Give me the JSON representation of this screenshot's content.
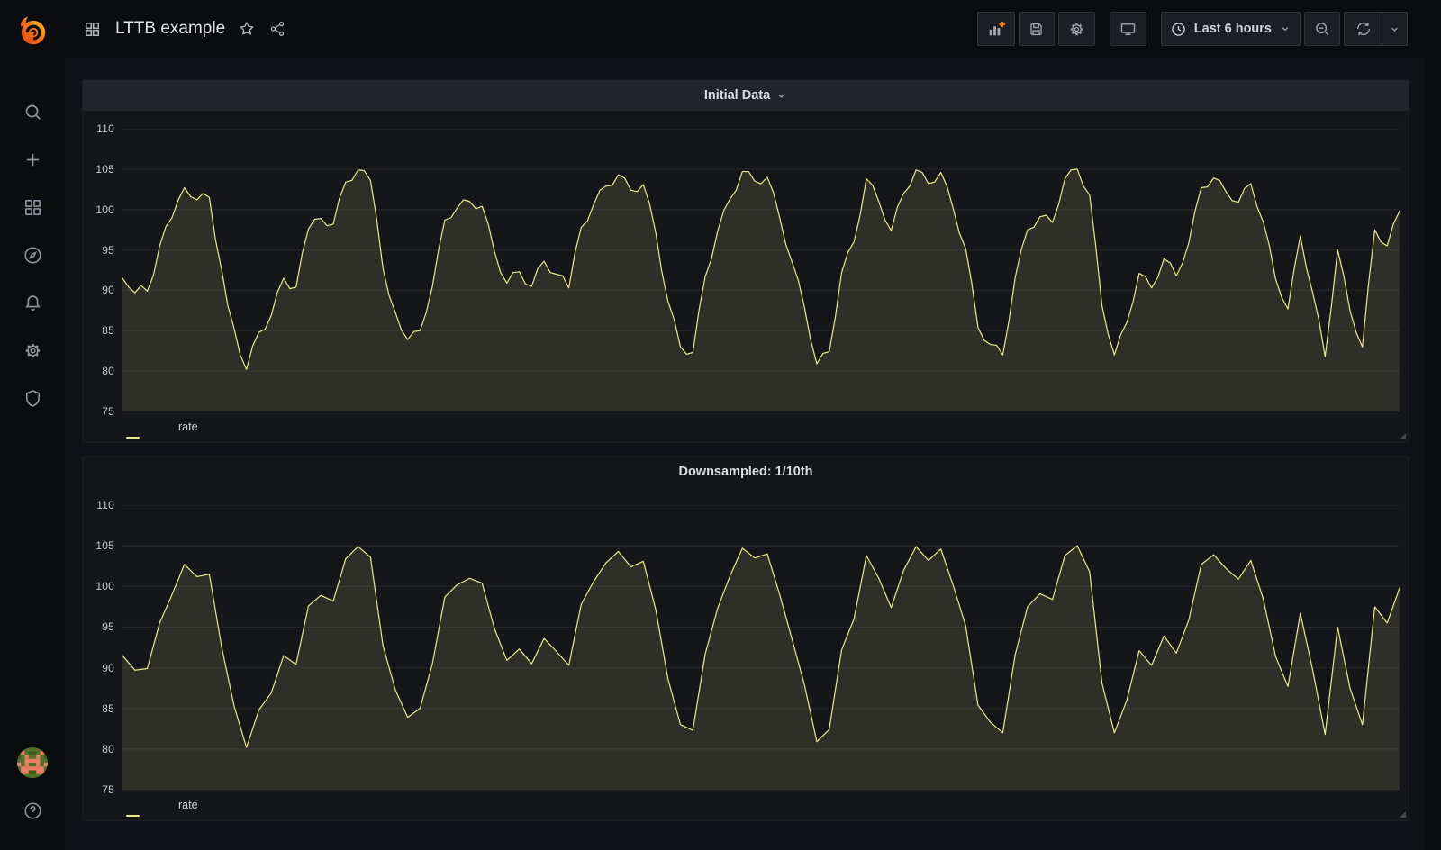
{
  "colors": {
    "accent_orange": "#FF780A",
    "series_yellow": "#EDE98C",
    "series_fill": "rgba(237,233,140,0.12)",
    "page_bg": "#111217",
    "chrome_bg": "#0b0c0e",
    "panel_bg": "#141619"
  },
  "sidebar": {
    "items": [
      {
        "icon": "grafana-logo"
      },
      {
        "icon": "search-icon"
      },
      {
        "icon": "plus-icon"
      },
      {
        "icon": "dashboards-grid-icon"
      },
      {
        "icon": "explore-compass-icon"
      },
      {
        "icon": "alerting-bell-icon"
      },
      {
        "icon": "configuration-gear-icon"
      },
      {
        "icon": "admin-shield-icon"
      },
      {
        "icon": "user-avatar"
      },
      {
        "icon": "help-question-icon"
      }
    ]
  },
  "topnav": {
    "title": "LTTB example",
    "left_icons": [
      "dashboard-grid-icon",
      "star-icon",
      "share-icon"
    ],
    "toolbar": {
      "buttons": [
        "add-panel",
        "save-dashboard",
        "dashboard-settings",
        "cycle-view-mode",
        "time-range-picker",
        "zoom-out",
        "refresh",
        "refresh-interval-dropdown"
      ],
      "time_range_label": "Last 6 hours"
    }
  },
  "chart_data": [
    {
      "type": "line",
      "title": "Initial Data",
      "has_menu_chevron": true,
      "ylim": [
        75,
        110
      ],
      "yticks": [
        75,
        80,
        85,
        90,
        95,
        100,
        105,
        110
      ],
      "x_axis": {
        "labels_visible": false,
        "range": "Last 6 hours"
      },
      "grid": true,
      "legend_position": "bottom-left",
      "line_color": "#EDE98C",
      "fill_color": "rgba(237,233,140,0.12)",
      "series": [
        {
          "name": "rate",
          "values": [
            91.5,
            90.4,
            89.7,
            90.6,
            89.9,
            91.9,
            95.5,
            97.9,
            99.0,
            101.2,
            102.7,
            101.6,
            101.2,
            102.0,
            101.5,
            96.3,
            92.5,
            88.1,
            85.3,
            82.0,
            80.2,
            83.1,
            84.8,
            85.2,
            86.9,
            89.8,
            91.5,
            90.2,
            90.4,
            94.6,
            97.6,
            98.8,
            98.9,
            98.0,
            98.2,
            101.4,
            103.4,
            103.6,
            104.9,
            104.8,
            103.6,
            98.9,
            92.8,
            89.4,
            87.3,
            85.1,
            83.9,
            84.9,
            85.0,
            87.3,
            90.5,
            95.1,
            98.7,
            99.0,
            100.2,
            101.2,
            101.0,
            100.1,
            100.4,
            98.2,
            94.8,
            92.2,
            90.9,
            92.2,
            92.3,
            90.8,
            90.5,
            92.7,
            93.6,
            92.2,
            92.0,
            91.8,
            90.3,
            94.7,
            97.8,
            98.6,
            100.6,
            102.4,
            102.9,
            103.0,
            104.3,
            103.9,
            102.4,
            102.2,
            103.1,
            100.8,
            97.2,
            92.3,
            88.6,
            86.4,
            83.0,
            82.1,
            82.3,
            87.6,
            91.7,
            93.9,
            97.3,
            99.9,
            101.3,
            102.4,
            104.7,
            104.7,
            103.5,
            103.2,
            104.0,
            102.1,
            99.0,
            95.7,
            93.5,
            91.3,
            87.9,
            83.9,
            80.9,
            82.2,
            82.4,
            86.8,
            92.2,
            94.7,
            96.0,
            99.4,
            103.8,
            103.0,
            101.0,
            98.7,
            97.4,
            100.3,
            102.0,
            102.9,
            104.9,
            104.6,
            103.2,
            103.4,
            104.6,
            102.9,
            100.1,
            97.1,
            95.2,
            90.9,
            85.4,
            83.8,
            83.3,
            83.2,
            82.0,
            86.3,
            91.6,
            95.1,
            97.5,
            97.8,
            99.1,
            99.3,
            98.4,
            100.6,
            103.8,
            104.9,
            105.0,
            102.9,
            101.8,
            95.5,
            88.1,
            84.6,
            82.0,
            84.5,
            86.0,
            88.6,
            92.1,
            91.7,
            90.3,
            91.6,
            93.9,
            93.4,
            91.8,
            93.4,
            95.9,
            99.8,
            102.7,
            102.8,
            103.9,
            103.6,
            102.2,
            101.1,
            100.9,
            102.6,
            103.2,
            100.4,
            98.5,
            95.5,
            91.4,
            89.1,
            87.7,
            92.7,
            96.7,
            92.7,
            89.7,
            86.3,
            81.8,
            88.0,
            95.0,
            91.8,
            87.5,
            84.8,
            83.0,
            90.8,
            97.5,
            96.0,
            95.5,
            98.2,
            99.8
          ]
        }
      ]
    },
    {
      "type": "line",
      "title": "Downsampled: 1/10th",
      "has_menu_chevron": false,
      "ylim": [
        75,
        110
      ],
      "yticks": [
        75,
        80,
        85,
        90,
        95,
        100,
        105,
        110
      ],
      "x_axis": {
        "labels_visible": false,
        "range": "Last 6 hours"
      },
      "grid": true,
      "legend_position": "bottom-left",
      "line_color": "#EDE98C",
      "fill_color": "rgba(237,233,140,0.12)",
      "series": [
        {
          "name": "rate",
          "values": [
            91.5,
            89.7,
            89.9,
            95.5,
            99.0,
            102.7,
            101.2,
            101.5,
            92.5,
            85.3,
            80.2,
            84.8,
            86.9,
            91.5,
            90.4,
            97.6,
            98.9,
            98.2,
            103.4,
            104.9,
            103.6,
            92.8,
            87.3,
            83.9,
            85.0,
            90.5,
            98.7,
            100.2,
            101.0,
            100.4,
            94.8,
            90.9,
            92.3,
            90.5,
            93.6,
            92.0,
            90.3,
            97.8,
            100.6,
            102.9,
            104.3,
            102.4,
            103.1,
            97.2,
            88.6,
            83.0,
            82.3,
            91.7,
            97.3,
            101.3,
            104.7,
            103.5,
            104.0,
            99.0,
            93.5,
            87.9,
            80.9,
            82.4,
            92.2,
            96.0,
            103.8,
            101.0,
            97.4,
            102.0,
            104.9,
            103.2,
            104.6,
            100.1,
            95.2,
            85.4,
            83.3,
            82.0,
            91.6,
            97.5,
            99.1,
            98.4,
            103.8,
            105.0,
            101.8,
            88.1,
            82.0,
            86.0,
            92.1,
            90.3,
            93.9,
            91.8,
            95.9,
            102.7,
            103.9,
            102.2,
            100.9,
            103.2,
            98.5,
            91.4,
            87.7,
            96.7,
            89.7,
            81.8,
            95.0,
            87.5,
            83.0,
            97.5,
            95.5,
            99.8
          ]
        }
      ]
    }
  ]
}
